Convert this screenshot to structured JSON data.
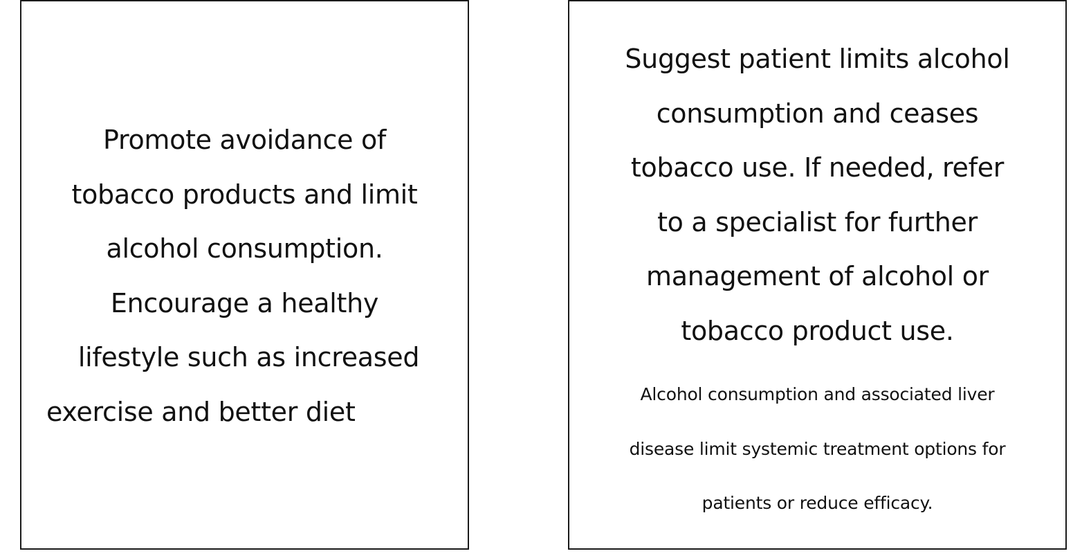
{
  "left_card": {
    "lines": [
      "Promote avoidance of",
      "tobacco products and limit",
      "alcohol consumption.",
      "Encourage a healthy",
      "lifestyle such as increased",
      "exercise and better diet"
    ]
  },
  "right_card": {
    "main_lines": [
      "Suggest patient limits alcohol",
      "consumption and ceases",
      "tobacco use. If needed, refer",
      "to a specialist for further",
      "management of alcohol or",
      "tobacco product use."
    ],
    "note_lines": [
      "Alcohol consumption and associated liver",
      "disease limit systemic treatment options for",
      "patients or reduce efficacy."
    ]
  }
}
